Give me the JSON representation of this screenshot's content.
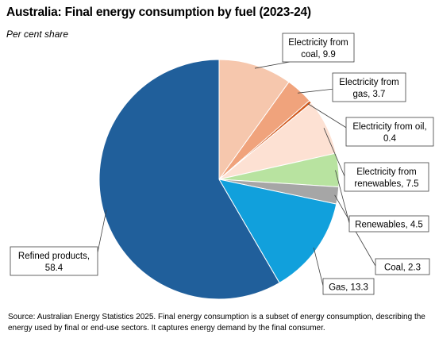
{
  "chart_data": {
    "type": "pie",
    "title": "Australia: Final energy consumption by fuel (2023-24)",
    "subtitle": "Per cent share",
    "unit": "Per cent share",
    "slices": [
      {
        "name": "Electricity from coal",
        "value": 9.9,
        "color": "#f6c7ad",
        "label_lines": [
          "Electricity from",
          "coal, 9.9"
        ]
      },
      {
        "name": "Electricity from gas",
        "value": 3.7,
        "color": "#f0a37c",
        "label_lines": [
          "Electricity from",
          "gas, 3.7"
        ]
      },
      {
        "name": "Electricity from oil",
        "value": 0.4,
        "color": "#d25a1e",
        "label_lines": [
          "Electricity from oil,",
          "0.4"
        ]
      },
      {
        "name": "Electricity from renewables",
        "value": 7.5,
        "color": "#fde1d3",
        "label_lines": [
          "Electricity from",
          "renewables,  7.5"
        ]
      },
      {
        "name": "Renewables",
        "value": 4.5,
        "color": "#b8e3a0",
        "label_lines": [
          "Renewables,  4.5"
        ]
      },
      {
        "name": "Coal",
        "value": 2.3,
        "color": "#a6a6a6",
        "label_lines": [
          "Coal, 2.3"
        ]
      },
      {
        "name": "Gas",
        "value": 13.3,
        "color": "#11a0dc",
        "label_lines": [
          "Gas, 13.3"
        ]
      },
      {
        "name": "Refined products",
        "value": 58.4,
        "color": "#205f9b",
        "label_lines": [
          "Refined products,",
          "58.4"
        ]
      }
    ],
    "start_angle": "90° clockwise from 12 o'clock",
    "direction": "clockwise",
    "legend": "none (data callouts)"
  },
  "footer": {
    "source": "Source: Australian Energy Statistics 2025. Final energy consumption is a subset of energy consumption, describing the energy used by final or end-use sectors. It captures energy demand by the final consumer."
  }
}
